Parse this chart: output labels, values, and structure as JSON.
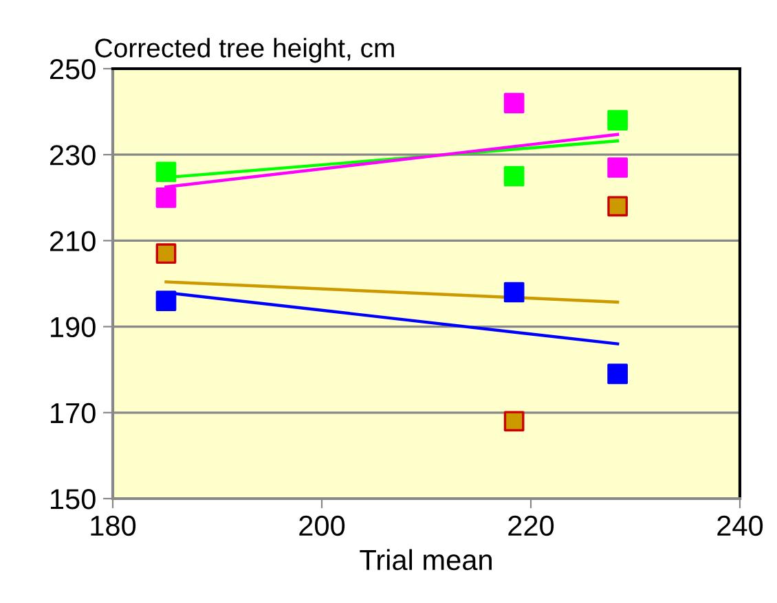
{
  "chart_data": {
    "type": "scatter",
    "title": "Corrected tree height, cm",
    "xlabel": "Trial mean",
    "xlim": [
      180,
      240
    ],
    "xticks": [
      180,
      200,
      220,
      240
    ],
    "ylim": [
      150,
      250
    ],
    "yticks": [
      150,
      170,
      190,
      210,
      230,
      250
    ],
    "grid": "y",
    "marker": "square",
    "legend": false,
    "series": [
      {
        "color": "#00ff00",
        "x": [
          185.1,
          218.4,
          228.3
        ],
        "values": [
          226,
          225,
          238
        ]
      },
      {
        "color": "#ff00ff",
        "x": [
          185.1,
          218.4,
          228.3
        ],
        "values": [
          220,
          242,
          227
        ]
      },
      {
        "color": "#cc9900",
        "x": [
          185.1,
          218.4,
          228.3
        ],
        "values": [
          207,
          168,
          218
        ]
      },
      {
        "color": "#0000ff",
        "x": [
          185.1,
          218.4,
          228.3
        ],
        "values": [
          196,
          198,
          179
        ]
      },
      {
        "type": "line",
        "marker": "none",
        "color": "#00ff00",
        "x": [
          185.1,
          228.3
        ],
        "values": [
          224.7,
          233.2
        ]
      },
      {
        "type": "line",
        "marker": "none",
        "color": "#ff00ff",
        "x": [
          185.1,
          228.3
        ],
        "values": [
          222.5,
          234.7
        ]
      },
      {
        "type": "line",
        "marker": "none",
        "color": "#cc9900",
        "x": [
          185.1,
          228.3
        ],
        "values": [
          200.4,
          195.7
        ]
      },
      {
        "type": "line",
        "marker": "none",
        "color": "#0000ff",
        "x": [
          185.1,
          228.3
        ],
        "values": [
          197.9,
          186.0
        ]
      }
    ]
  }
}
